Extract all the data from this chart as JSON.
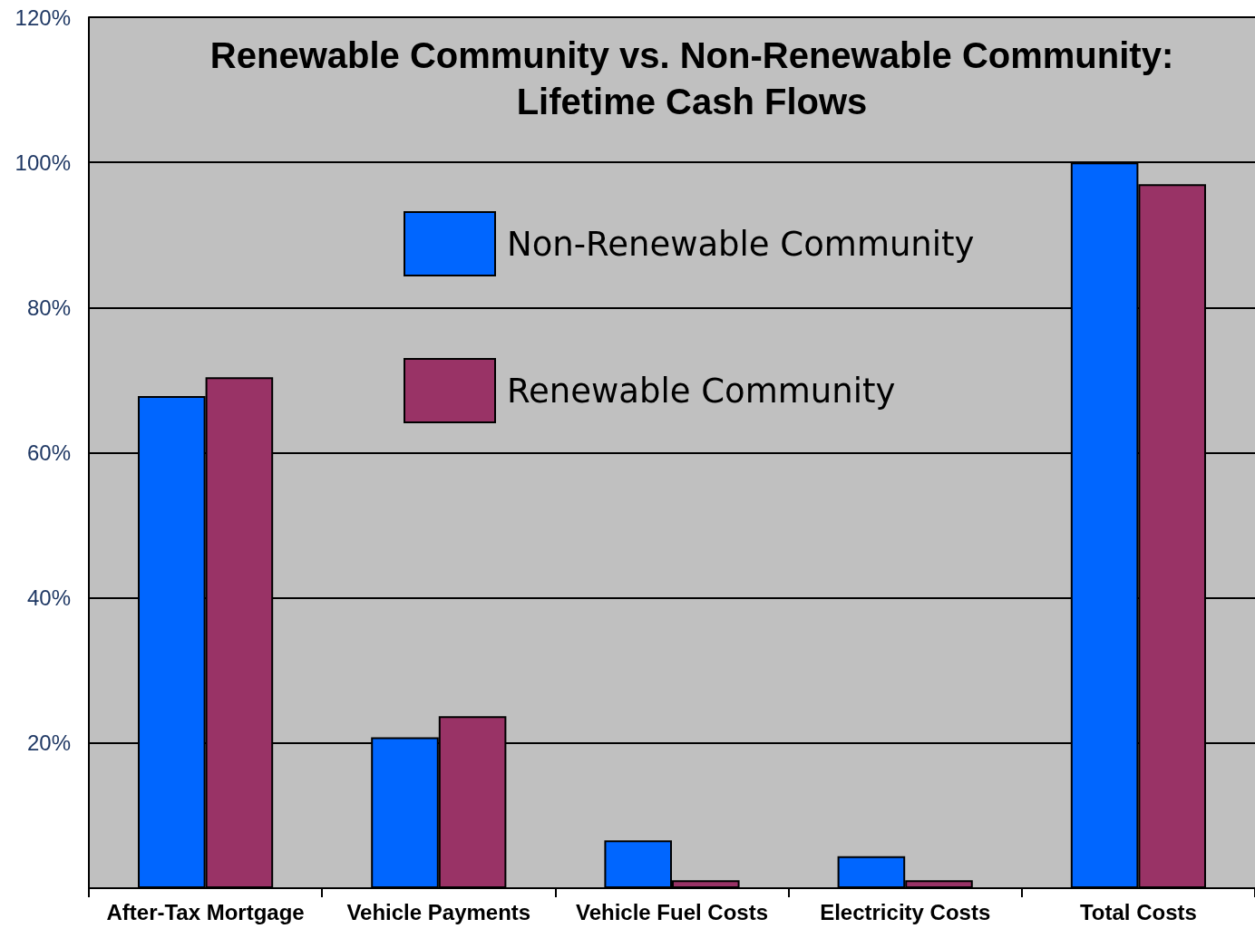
{
  "chart_data": {
    "type": "bar",
    "title": "Renewable Community vs. Non-Renewable Community:\nLifetime Cash Flows",
    "categories": [
      "After-Tax Mortgage",
      "Vehicle Payments",
      "Vehicle Fuel Costs",
      "Electricity Costs",
      "Total Costs"
    ],
    "series": [
      {
        "name": "Non-Renewable Community",
        "color": "#0066ff",
        "values": [
          67.8,
          20.8,
          6.6,
          4.4,
          100
        ]
      },
      {
        "name": "Renewable Community",
        "color": "#993366",
        "values": [
          70.4,
          23.7,
          1.1,
          1.1,
          97
        ]
      }
    ],
    "ylim": [
      0,
      120
    ],
    "yticks": [
      {
        "value": 0,
        "label": null
      },
      {
        "value": 20,
        "label": "20%"
      },
      {
        "value": 40,
        "label": "40%"
      },
      {
        "value": 60,
        "label": "60%"
      },
      {
        "value": 80,
        "label": "80%"
      },
      {
        "value": 100,
        "label": "100%"
      },
      {
        "value": 120,
        "label": "120%"
      }
    ],
    "grid": "y",
    "legend": "top"
  }
}
